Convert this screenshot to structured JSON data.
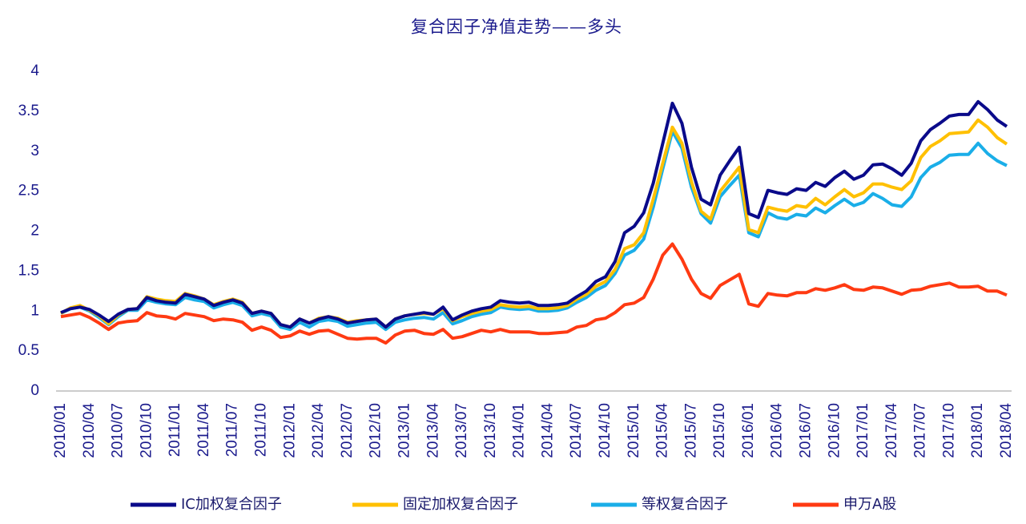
{
  "chart_data": {
    "type": "line",
    "title": "复合因子净值走势——多头",
    "categories": [
      "2010/01",
      null,
      null,
      "2010/04",
      null,
      null,
      "2010/07",
      null,
      null,
      "2010/10",
      null,
      null,
      "2011/01",
      null,
      null,
      "2011/04",
      null,
      null,
      "2011/07",
      null,
      null,
      "2011/10",
      null,
      null,
      "2012/01",
      null,
      null,
      "2012/04",
      null,
      null,
      "2012/07",
      null,
      null,
      "2012/10",
      null,
      null,
      "2013/01",
      null,
      null,
      "2013/04",
      null,
      null,
      "2013/07",
      null,
      null,
      "2013/10",
      null,
      null,
      "2014/01",
      null,
      null,
      "2014/04",
      null,
      null,
      "2014/07",
      null,
      null,
      "2014/10",
      null,
      null,
      "2015/01",
      null,
      null,
      "2015/04",
      null,
      null,
      "2015/07",
      null,
      null,
      "2015/10",
      null,
      null,
      "2016/01",
      null,
      null,
      "2016/04",
      null,
      null,
      "2016/07",
      null,
      null,
      "2016/10",
      null,
      null,
      "2017/01",
      null,
      null,
      "2017/04",
      null,
      null,
      "2017/07",
      null,
      null,
      "2017/10",
      null,
      null,
      "2018/01",
      null,
      null,
      "2018/04"
    ],
    "series": [
      {
        "name": "IC加权复合因子",
        "color": "#0a0a8a",
        "values": [
          0.98,
          1.03,
          1.05,
          1.02,
          0.95,
          0.87,
          0.96,
          1.02,
          1.03,
          1.17,
          1.13,
          1.11,
          1.1,
          1.21,
          1.18,
          1.15,
          1.07,
          1.11,
          1.14,
          1.1,
          0.97,
          1.0,
          0.97,
          0.83,
          0.8,
          0.9,
          0.85,
          0.9,
          0.93,
          0.9,
          0.85,
          0.87,
          0.89,
          0.9,
          0.8,
          0.9,
          0.94,
          0.96,
          0.98,
          0.96,
          1.05,
          0.89,
          0.95,
          1.0,
          1.03,
          1.05,
          1.13,
          1.11,
          1.1,
          1.11,
          1.07,
          1.07,
          1.08,
          1.1,
          1.18,
          1.25,
          1.37,
          1.43,
          1.62,
          1.98,
          2.06,
          2.23,
          2.6,
          3.1,
          3.6,
          3.35,
          2.8,
          2.4,
          2.33,
          2.7,
          2.88,
          3.05,
          2.22,
          2.17,
          2.51,
          2.48,
          2.46,
          2.53,
          2.51,
          2.61,
          2.56,
          2.67,
          2.75,
          2.65,
          2.7,
          2.83,
          2.84,
          2.78,
          2.7,
          2.85,
          3.13,
          3.27,
          3.35,
          3.44,
          3.46,
          3.46,
          3.62,
          3.52,
          3.39,
          3.31
        ]
      },
      {
        "name": "固定加权复合因子",
        "color": "#ffc000",
        "values": [
          0.97,
          1.04,
          1.07,
          1.01,
          0.94,
          0.84,
          0.95,
          1.02,
          1.03,
          1.18,
          1.15,
          1.13,
          1.12,
          1.22,
          1.19,
          1.15,
          1.08,
          1.12,
          1.15,
          1.11,
          0.97,
          1.0,
          0.97,
          0.83,
          0.8,
          0.9,
          0.85,
          0.91,
          0.93,
          0.91,
          0.86,
          0.88,
          0.89,
          0.9,
          0.8,
          0.9,
          0.94,
          0.96,
          0.97,
          0.96,
          1.03,
          0.88,
          0.93,
          0.97,
          1.0,
          1.02,
          1.08,
          1.06,
          1.05,
          1.06,
          1.03,
          1.03,
          1.04,
          1.07,
          1.15,
          1.21,
          1.31,
          1.37,
          1.52,
          1.78,
          1.83,
          1.98,
          2.4,
          2.85,
          3.3,
          3.1,
          2.62,
          2.25,
          2.15,
          2.5,
          2.65,
          2.8,
          2.02,
          1.98,
          2.3,
          2.27,
          2.25,
          2.32,
          2.3,
          2.41,
          2.33,
          2.43,
          2.52,
          2.43,
          2.48,
          2.59,
          2.59,
          2.55,
          2.52,
          2.63,
          2.92,
          3.06,
          3.13,
          3.22,
          3.23,
          3.24,
          3.39,
          3.3,
          3.17,
          3.09
        ]
      },
      {
        "name": "等权复合因子",
        "color": "#1aaee8",
        "values": [
          0.97,
          1.03,
          1.05,
          1.0,
          0.92,
          0.83,
          0.93,
          1.01,
          1.01,
          1.14,
          1.11,
          1.09,
          1.08,
          1.17,
          1.14,
          1.12,
          1.04,
          1.08,
          1.11,
          1.07,
          0.94,
          0.97,
          0.94,
          0.8,
          0.77,
          0.86,
          0.8,
          0.87,
          0.89,
          0.87,
          0.81,
          0.83,
          0.85,
          0.86,
          0.77,
          0.86,
          0.89,
          0.91,
          0.92,
          0.9,
          0.98,
          0.84,
          0.88,
          0.93,
          0.96,
          0.98,
          1.05,
          1.03,
          1.02,
          1.03,
          1.0,
          1.0,
          1.01,
          1.04,
          1.11,
          1.17,
          1.26,
          1.32,
          1.47,
          1.7,
          1.76,
          1.9,
          2.3,
          2.78,
          3.25,
          3.04,
          2.55,
          2.22,
          2.1,
          2.43,
          2.57,
          2.7,
          1.98,
          1.93,
          2.23,
          2.17,
          2.15,
          2.21,
          2.19,
          2.29,
          2.23,
          2.32,
          2.4,
          2.32,
          2.36,
          2.47,
          2.41,
          2.33,
          2.31,
          2.43,
          2.67,
          2.8,
          2.86,
          2.95,
          2.96,
          2.96,
          3.1,
          2.97,
          2.88,
          2.82
        ]
      },
      {
        "name": "申万A股",
        "color": "#ff3a12",
        "values": [
          0.93,
          0.95,
          0.97,
          0.92,
          0.85,
          0.77,
          0.85,
          0.87,
          0.88,
          0.98,
          0.94,
          0.93,
          0.9,
          0.97,
          0.95,
          0.93,
          0.88,
          0.9,
          0.89,
          0.86,
          0.76,
          0.8,
          0.76,
          0.67,
          0.69,
          0.75,
          0.71,
          0.75,
          0.76,
          0.71,
          0.66,
          0.65,
          0.66,
          0.66,
          0.6,
          0.7,
          0.75,
          0.76,
          0.72,
          0.71,
          0.77,
          0.66,
          0.68,
          0.72,
          0.76,
          0.74,
          0.77,
          0.74,
          0.74,
          0.74,
          0.72,
          0.72,
          0.73,
          0.74,
          0.8,
          0.82,
          0.89,
          0.91,
          0.98,
          1.08,
          1.1,
          1.17,
          1.4,
          1.7,
          1.84,
          1.65,
          1.4,
          1.22,
          1.16,
          1.32,
          1.39,
          1.46,
          1.09,
          1.06,
          1.22,
          1.2,
          1.19,
          1.23,
          1.23,
          1.28,
          1.26,
          1.29,
          1.33,
          1.27,
          1.26,
          1.3,
          1.29,
          1.25,
          1.21,
          1.26,
          1.27,
          1.31,
          1.33,
          1.35,
          1.3,
          1.3,
          1.31,
          1.25,
          1.25,
          1.2
        ]
      }
    ],
    "ylim": [
      0,
      4
    ],
    "yticks": [
      0,
      0.5,
      1,
      1.5,
      2,
      2.5,
      3,
      3.5,
      4
    ],
    "grid": false,
    "legend": "bottom"
  }
}
